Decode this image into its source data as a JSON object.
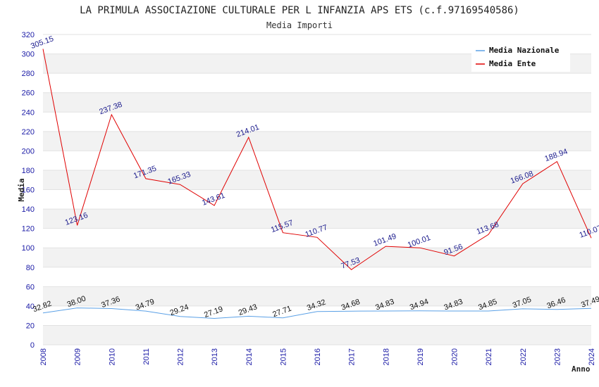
{
  "chart_data": {
    "type": "line",
    "title": "LA PRIMULA ASSOCIAZIONE CULTURALE PER L INFANZIA APS ETS (c.f.97169540586)",
    "subtitle": "Media Importi",
    "xlabel": "Anno",
    "ylabel": "Media",
    "ylim": [
      0,
      320
    ],
    "yticks": [
      "0",
      "20",
      "40",
      "60",
      "80",
      "100",
      "120",
      "140",
      "160",
      "180",
      "200",
      "220",
      "240",
      "260",
      "280",
      "300",
      "320"
    ],
    "x": [
      "2008",
      "2009",
      "2010",
      "2011",
      "2012",
      "2013",
      "2014",
      "2015",
      "2016",
      "2017",
      "2018",
      "2019",
      "2020",
      "2021",
      "2022",
      "2023",
      "2024"
    ],
    "grid": true,
    "legend_position": "top-right",
    "series": [
      {
        "name": "Media Nazionale",
        "color": "#5aa0e6",
        "values": [
          32.82,
          38.0,
          37.36,
          34.79,
          29.24,
          27.19,
          29.43,
          27.71,
          34.32,
          34.68,
          34.83,
          34.94,
          34.83,
          34.85,
          37.05,
          36.46,
          37.49
        ],
        "labels": [
          "32.82",
          "38.00",
          "37.36",
          "34.79",
          "29.24",
          "27.19",
          "29.43",
          "27.71",
          "34.32",
          "34.68",
          "34.83",
          "34.94",
          "34.83",
          "34.85",
          "37.05",
          "36.46",
          "37.49"
        ]
      },
      {
        "name": "Media Ente",
        "color": "#e00000",
        "values": [
          305.15,
          123.16,
          237.38,
          171.35,
          165.33,
          143.61,
          214.01,
          115.57,
          110.77,
          77.53,
          101.49,
          100.01,
          91.56,
          113.68,
          166.08,
          188.94,
          110.07
        ],
        "labels": [
          "305.15",
          "123.16",
          "237.38",
          "171.35",
          "165.33",
          "143.61",
          "214.01",
          "115.57",
          "110.77",
          "77.53",
          "101.49",
          "100.01",
          "91.56",
          "113.68",
          "166.08",
          "188.94",
          "110.07"
        ]
      }
    ]
  }
}
